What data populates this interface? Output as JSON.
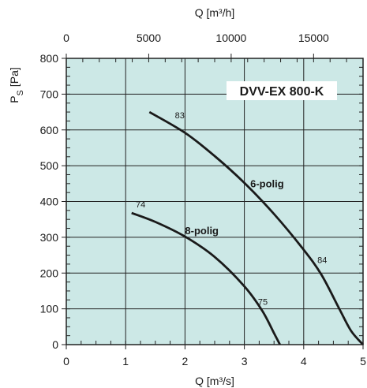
{
  "chart_data": {
    "type": "line",
    "title": "DVV-EX 800-K",
    "xlabel": "Q [m³/s]",
    "x2label": "Q [m³/h]",
    "ylabel_main": "P",
    "ylabel_sub": "S",
    "ylabel_unit": "[Pa]",
    "xlim": [
      0,
      5
    ],
    "ylim": [
      0,
      800
    ],
    "x_ticks": [
      "0",
      "1",
      "2",
      "3",
      "4",
      "5"
    ],
    "y_ticks": [
      "0",
      "100",
      "200",
      "300",
      "400",
      "500",
      "600",
      "700",
      "800"
    ],
    "x2_ticks": [
      {
        "value": 0,
        "label": "0"
      },
      {
        "value": 5000,
        "label": "5000"
      },
      {
        "value": 10000,
        "label": "10000"
      },
      {
        "value": 15000,
        "label": "15000"
      }
    ],
    "x2_factor": 3600,
    "grid": true,
    "colors": {
      "plot_background": "#cce8e6",
      "grid": "#222222",
      "curve": "#1a1a1a"
    },
    "series": [
      {
        "name": "6-polig",
        "points": [
          {
            "x": 1.4,
            "y": 650
          },
          {
            "x": 2.0,
            "y": 592
          },
          {
            "x": 2.5,
            "y": 527
          },
          {
            "x": 3.0,
            "y": 452
          },
          {
            "x": 3.5,
            "y": 365
          },
          {
            "x": 4.0,
            "y": 265
          },
          {
            "x": 4.3,
            "y": 195
          },
          {
            "x": 4.6,
            "y": 100
          },
          {
            "x": 4.8,
            "y": 38
          },
          {
            "x": 5.0,
            "y": 0
          }
        ],
        "label_at": {
          "x": 3.1,
          "y": 440
        }
      },
      {
        "name": "8-polig",
        "points": [
          {
            "x": 1.1,
            "y": 368
          },
          {
            "x": 1.5,
            "y": 343
          },
          {
            "x": 2.0,
            "y": 302
          },
          {
            "x": 2.5,
            "y": 245
          },
          {
            "x": 3.0,
            "y": 163
          },
          {
            "x": 3.3,
            "y": 95
          },
          {
            "x": 3.5,
            "y": 32
          },
          {
            "x": 3.6,
            "y": 0
          }
        ],
        "label_at": {
          "x": 2.0,
          "y": 308
        }
      }
    ],
    "annotations": [
      {
        "text": "83",
        "x": 1.83,
        "y": 633
      },
      {
        "text": "74",
        "x": 1.17,
        "y": 383
      },
      {
        "text": "84",
        "x": 4.23,
        "y": 228
      },
      {
        "text": "75",
        "x": 3.23,
        "y": 111
      }
    ]
  }
}
